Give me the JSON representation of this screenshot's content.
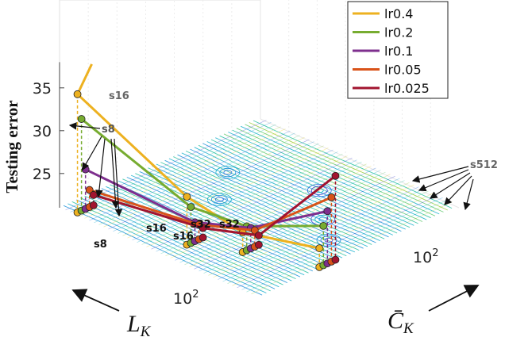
{
  "chart_data": {
    "type": "line",
    "title": "",
    "zlabel": "Testing error",
    "xlabel": "L_K",
    "ylabel": "C̄_K",
    "zlim": [
      21,
      38
    ],
    "zticks": [
      25,
      30,
      35
    ],
    "x_tick_labels": [
      "10",
      "2"
    ],
    "y_tick_labels": [
      "10",
      "2"
    ],
    "x_points": [
      "s8",
      "s16",
      "s32",
      "s512"
    ],
    "annotations": [
      "s16",
      "s8",
      "s8",
      "s16",
      "s16",
      "s32",
      "s32",
      "s512"
    ],
    "legend_position": "top-right",
    "series": [
      {
        "name": "lr0.4",
        "color": "#EDB120",
        "values": [
          34.8,
          26.6,
          23.3,
          23.2
        ]
      },
      {
        "name": "lr0.2",
        "color": "#77AC30",
        "values": [
          31.7,
          25.2,
          23.8,
          25.6
        ]
      },
      {
        "name": "lr0.1",
        "color": "#7E2F8E",
        "values": [
          25.6,
          23.2,
          23.4,
          27.1
        ]
      },
      {
        "name": "lr0.05",
        "color": "#D95319",
        "values": [
          23.0,
          22.7,
          22.9,
          28.5
        ]
      },
      {
        "name": "lr0.025",
        "color": "#A2142F",
        "values": [
          22.2,
          22.1,
          22.1,
          30.8
        ]
      }
    ]
  }
}
